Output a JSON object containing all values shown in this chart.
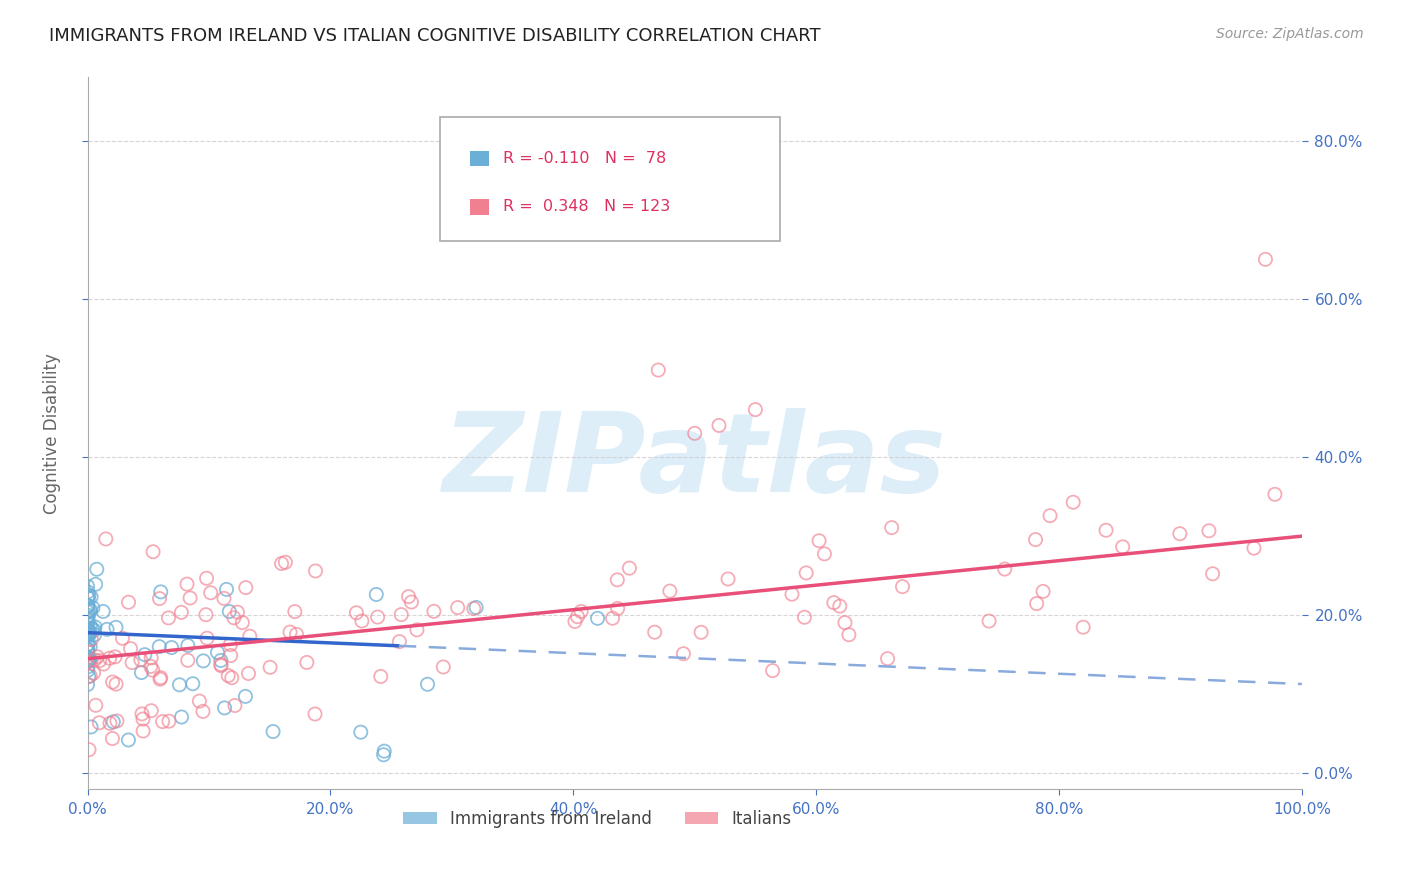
{
  "title": "IMMIGRANTS FROM IRELAND VS ITALIAN COGNITIVE DISABILITY CORRELATION CHART",
  "source": "Source: ZipAtlas.com",
  "ylabel": "Cognitive Disability",
  "watermark": "ZIPatlas",
  "ireland_color": "#6baed6",
  "italian_color": "#f08090",
  "ireland_R": -0.11,
  "ireland_N": 78,
  "italian_R": 0.348,
  "italian_N": 123,
  "xlim": [
    0.0,
    1.0
  ],
  "ylim": [
    -0.02,
    0.88
  ],
  "yticks": [
    0.0,
    0.2,
    0.4,
    0.6,
    0.8
  ],
  "xticks": [
    0.0,
    0.2,
    0.4,
    0.6,
    0.8,
    1.0
  ],
  "tick_color": "#4472c4",
  "title_color": "#222222",
  "background_color": "#ffffff",
  "grid_color": "#cccccc",
  "watermark_color": "#ddeef8",
  "ireland_line_color": "#3366cc",
  "ireland_dash_color": "#88aadd",
  "italian_line_color": "#e8507a",
  "legend_box_color": "#f0f0f0",
  "legend_border_color": "#aaaaaa",
  "legend_text_color": "#e03060",
  "source_color": "#999999"
}
